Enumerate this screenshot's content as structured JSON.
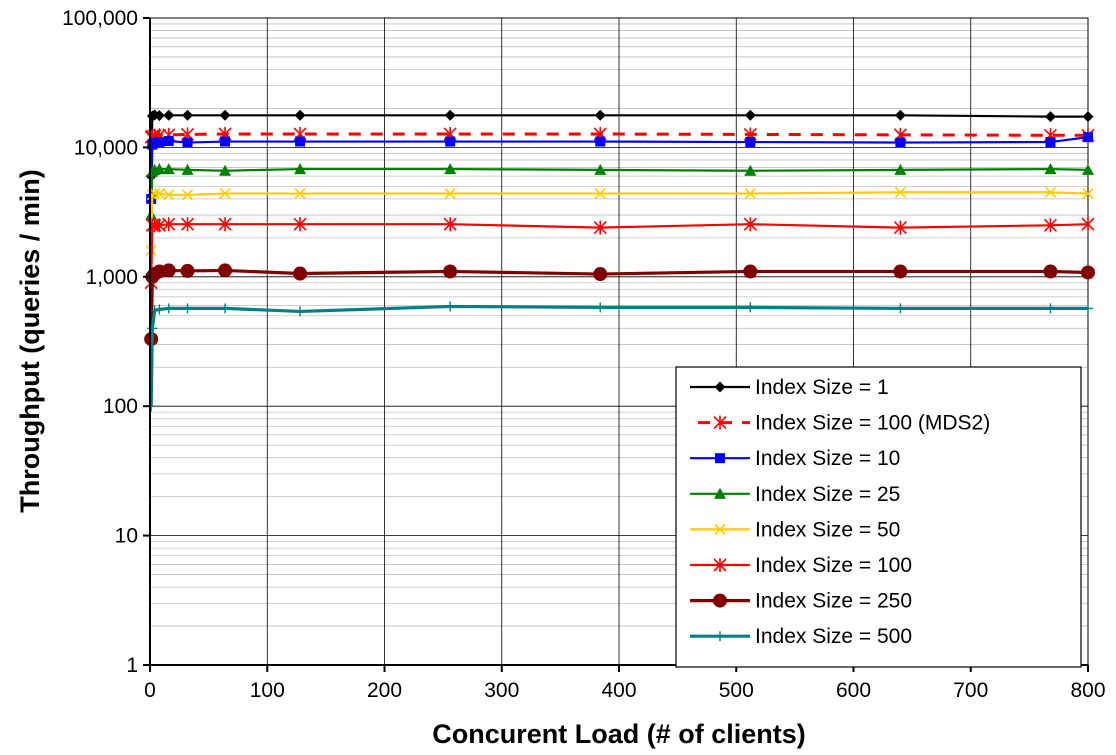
{
  "chart_data": {
    "type": "line",
    "title": "",
    "xlabel": "Concurent Load (# of clients)",
    "ylabel": "Throughput (queries / min)",
    "xlim": [
      0,
      800
    ],
    "ylim": [
      1,
      100000
    ],
    "y_scale": "log",
    "grid": true,
    "legend_position": "bottom-right",
    "x_tick_labels": [
      "0",
      "100",
      "200",
      "300",
      "400",
      "500",
      "600",
      "700",
      "800"
    ],
    "y_tick_labels": [
      "1",
      "10",
      "100",
      "1,000",
      "10,000",
      "100,000"
    ],
    "series": [
      {
        "name": "Index Size = 1",
        "color": "#000000",
        "marker": "diamond",
        "line_style": "solid",
        "x": [
          1,
          2,
          4,
          8,
          16,
          32,
          64,
          128,
          256,
          384,
          512,
          640,
          768,
          800
        ],
        "y": [
          6000,
          17500,
          17800,
          17600,
          17700,
          17700,
          17700,
          17700,
          17700,
          17700,
          17700,
          17700,
          17300,
          17300
        ]
      },
      {
        "name": "Index Size = 100 (MDS2)",
        "color": "#ff0000",
        "marker": "asterisk",
        "line_style": "dashed",
        "x": [
          1,
          2,
          4,
          8,
          16,
          32,
          64,
          128,
          256,
          384,
          512,
          640,
          768,
          800
        ],
        "y": [
          12000,
          12200,
          12300,
          12400,
          12500,
          12600,
          12700,
          12700,
          12700,
          12700,
          12600,
          12500,
          12400,
          12400
        ]
      },
      {
        "name": "Index Size = 10",
        "color": "#0000ff",
        "marker": "square",
        "line_style": "solid",
        "x": [
          1,
          2,
          4,
          8,
          16,
          32,
          64,
          128,
          256,
          384,
          512,
          640,
          768,
          800
        ],
        "y": [
          4000,
          10500,
          10800,
          11000,
          11200,
          10900,
          11100,
          11100,
          11100,
          11100,
          11000,
          10900,
          11000,
          12000
        ]
      },
      {
        "name": "Index Size = 25",
        "color": "#008000",
        "marker": "triangle",
        "line_style": "solid",
        "x": [
          1,
          2,
          4,
          8,
          16,
          32,
          64,
          128,
          256,
          384,
          512,
          640,
          768,
          800
        ],
        "y": [
          3000,
          6500,
          6700,
          6800,
          6800,
          6700,
          6600,
          6800,
          6800,
          6700,
          6600,
          6700,
          6800,
          6700
        ]
      },
      {
        "name": "Index Size = 50",
        "color": "#ffcc00",
        "marker": "x",
        "line_style": "solid",
        "x": [
          1,
          2,
          4,
          8,
          16,
          32,
          64,
          128,
          256,
          384,
          512,
          640,
          768,
          800
        ],
        "y": [
          1600,
          4300,
          4400,
          4400,
          4300,
          4300,
          4400,
          4400,
          4400,
          4400,
          4400,
          4500,
          4500,
          4400
        ]
      },
      {
        "name": "Index Size = 100",
        "color": "#ff0000",
        "marker": "asterisk",
        "line_style": "solid",
        "x": [
          1,
          2,
          4,
          8,
          16,
          32,
          64,
          128,
          256,
          384,
          512,
          640,
          768,
          800
        ],
        "y": [
          900,
          2500,
          2500,
          2500,
          2550,
          2550,
          2550,
          2550,
          2550,
          2400,
          2550,
          2400,
          2500,
          2550
        ]
      },
      {
        "name": "Index Size = 250",
        "color": "#800000",
        "marker": "circle",
        "line_style": "solid",
        "x": [
          1,
          2,
          4,
          8,
          16,
          32,
          64,
          128,
          256,
          384,
          512,
          640,
          768,
          800
        ],
        "y": [
          330,
          1000,
          1050,
          1100,
          1120,
          1110,
          1120,
          1060,
          1100,
          1050,
          1100,
          1100,
          1100,
          1080
        ]
      },
      {
        "name": "Index Size = 500",
        "color": "#008080",
        "marker": "plus",
        "line_style": "solid",
        "x": [
          1,
          2,
          4,
          8,
          16,
          32,
          64,
          128,
          256,
          384,
          512,
          640,
          768,
          800
        ],
        "y": [
          100,
          400,
          550,
          560,
          570,
          570,
          570,
          540,
          590,
          580,
          580,
          570,
          570,
          570
        ]
      }
    ]
  }
}
